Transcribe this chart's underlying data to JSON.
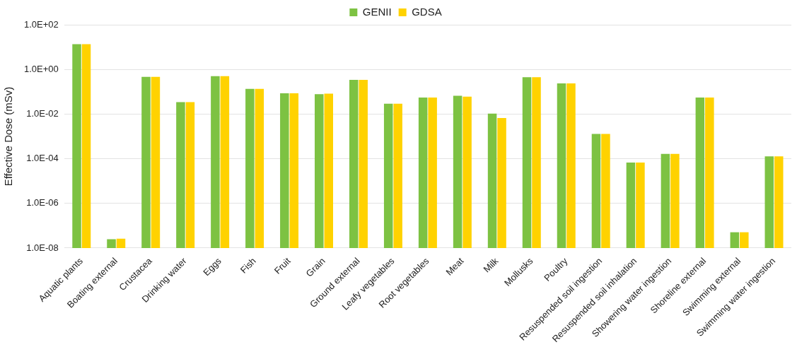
{
  "chart_data": {
    "type": "bar",
    "ylabel": "Effective Dose (mSv)",
    "log": "y",
    "grid": "y",
    "legend": "top",
    "categories": [
      "Aquatic plants",
      "Boating external",
      "Crustacea",
      "Drinking water",
      "Eggs",
      "Fish",
      "Fruit",
      "Grain",
      "Ground external",
      "Leafy vegetables",
      "Root vegetables",
      "Meat",
      "Milk",
      "Mollusks",
      "Poultry",
      "Resuspended soil ingestion",
      "Resuspended soil inhalation",
      "Showering water ingestion",
      "Shoreline external",
      "Swimming external",
      "Swimming water ingestion"
    ],
    "series": [
      {
        "name": "GENII",
        "color": "#7dc242",
        "values": [
          13.5,
          2.5e-08,
          0.46,
          0.034,
          0.5,
          0.135,
          0.085,
          0.078,
          0.34,
          0.029,
          0.055,
          0.066,
          0.0105,
          0.45,
          0.235,
          0.0013,
          6.7e-05,
          0.000166,
          0.055,
          5.1e-08,
          0.000127
        ]
      },
      {
        "name": "GDSA",
        "color": "#ffd200",
        "values": [
          13.5,
          2.6e-08,
          0.46,
          0.034,
          0.5,
          0.135,
          0.085,
          0.082,
          0.34,
          0.029,
          0.055,
          0.06,
          0.0066,
          0.45,
          0.235,
          0.0013,
          6.7e-05,
          0.000166,
          0.055,
          5.1e-08,
          0.000127
        ]
      }
    ],
    "ylim": [
      1e-08,
      100
    ],
    "yticks": [
      {
        "value": 1e-08,
        "label": "1.0E-08"
      },
      {
        "value": 1e-06,
        "label": "1.0E-06"
      },
      {
        "value": 0.0001,
        "label": "1.0E-04"
      },
      {
        "value": 0.01,
        "label": "1.0E-02"
      },
      {
        "value": 1,
        "label": "1.0E+00"
      },
      {
        "value": 100,
        "label": "1.0E+02"
      }
    ]
  }
}
